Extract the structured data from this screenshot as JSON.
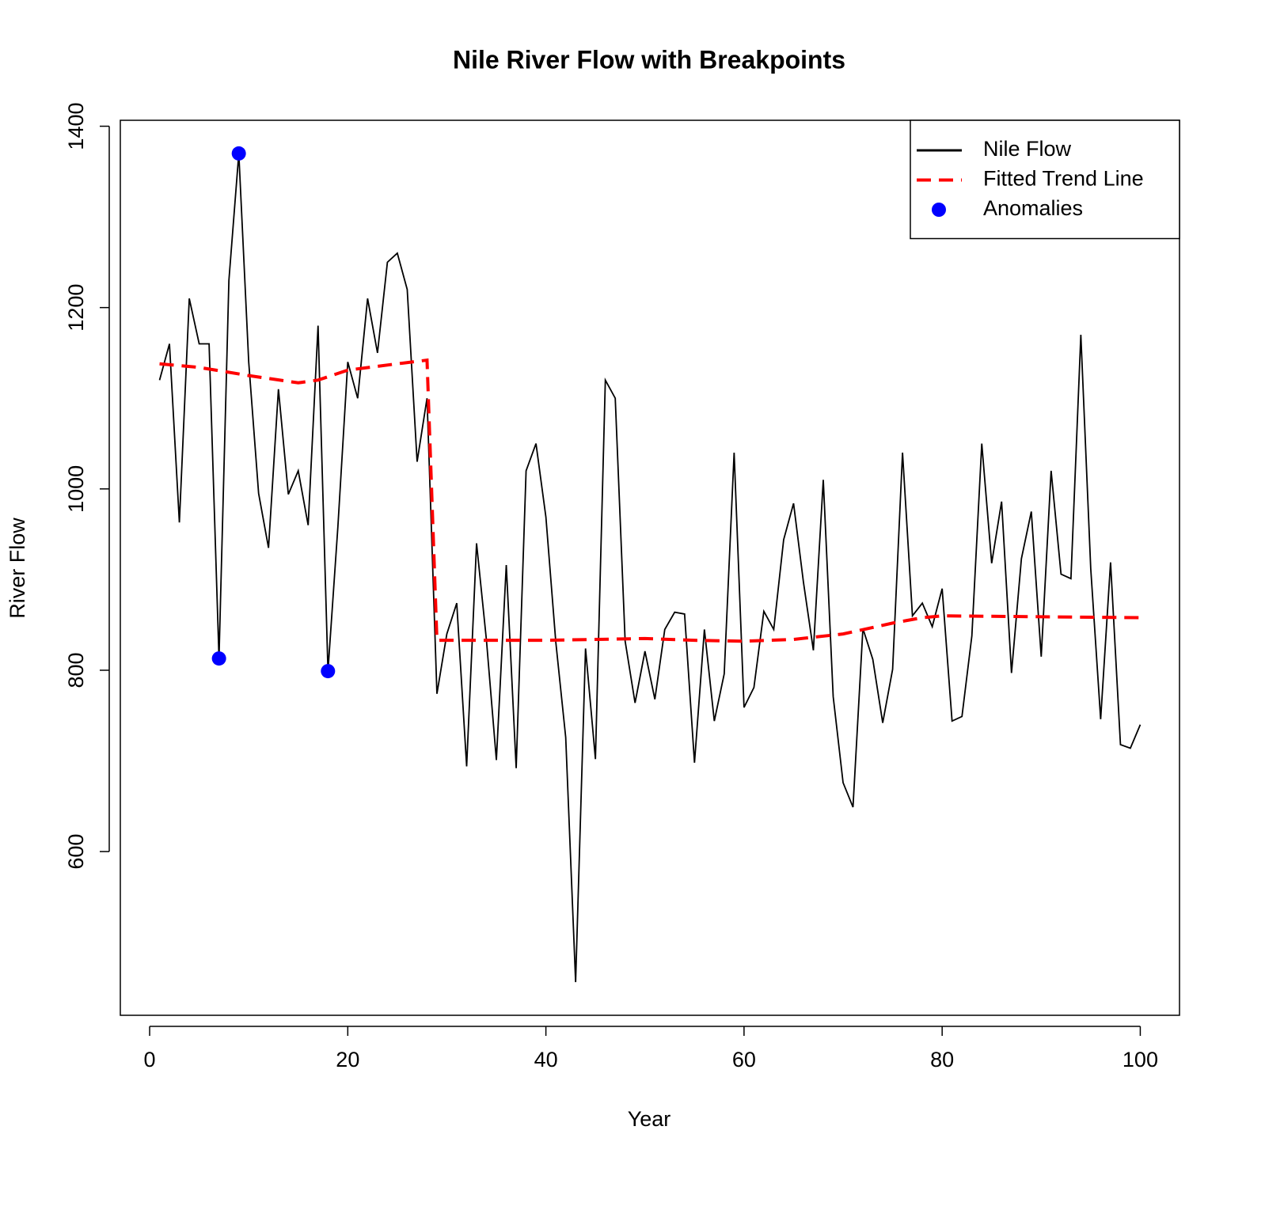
{
  "chart_data": {
    "type": "line",
    "title": "Nile River Flow with Breakpoints",
    "xlabel": "Year",
    "ylabel": "River Flow",
    "xlim": [
      -2.96,
      103.96
    ],
    "ylim": [
      419.44,
      1406.56
    ],
    "xticks": [
      0,
      20,
      40,
      60,
      80,
      100
    ],
    "yticks": [
      600,
      800,
      1000,
      1200,
      1400
    ],
    "legend": "top-right",
    "series": [
      {
        "name": "Nile Flow",
        "color": "#000000",
        "kind": "line",
        "line_style": "solid",
        "x": [
          1,
          2,
          3,
          4,
          5,
          6,
          7,
          8,
          9,
          10,
          11,
          12,
          13,
          14,
          15,
          16,
          17,
          18,
          19,
          20,
          21,
          22,
          23,
          24,
          25,
          26,
          27,
          28,
          29,
          30,
          31,
          32,
          33,
          34,
          35,
          36,
          37,
          38,
          39,
          40,
          41,
          42,
          43,
          44,
          45,
          46,
          47,
          48,
          49,
          50,
          51,
          52,
          53,
          54,
          55,
          56,
          57,
          58,
          59,
          60,
          61,
          62,
          63,
          64,
          65,
          66,
          67,
          68,
          69,
          70,
          71,
          72,
          73,
          74,
          75,
          76,
          77,
          78,
          79,
          80,
          81,
          82,
          83,
          84,
          85,
          86,
          87,
          88,
          89,
          90,
          91,
          92,
          93,
          94,
          95,
          96,
          97,
          98,
          99,
          100
        ],
        "values": [
          1120,
          1160,
          963,
          1210,
          1160,
          1160,
          813,
          1230,
          1370,
          1140,
          995,
          935,
          1110,
          994,
          1020,
          960,
          1180,
          799,
          958,
          1140,
          1100,
          1210,
          1150,
          1250,
          1260,
          1220,
          1030,
          1100,
          774,
          840,
          874,
          694,
          940,
          833,
          701,
          916,
          692,
          1020,
          1050,
          969,
          831,
          726,
          456,
          824,
          702,
          1120,
          1100,
          832,
          764,
          821,
          768,
          845,
          864,
          862,
          698,
          845,
          744,
          796,
          1040,
          759,
          781,
          865,
          845,
          944,
          984,
          897,
          822,
          1010,
          771,
          676,
          649,
          846,
          812,
          742,
          801,
          1040,
          860,
          874,
          848,
          890,
          744,
          749,
          838,
          1050,
          918,
          986,
          797,
          923,
          975,
          815,
          1020,
          906,
          901,
          1170,
          912,
          746,
          919,
          718,
          714,
          740
        ]
      },
      {
        "name": "Fitted Trend Line",
        "color": "#ff0000",
        "kind": "line",
        "line_style": "dashed",
        "x": [
          1,
          5,
          10,
          15,
          17,
          20,
          25,
          28,
          29,
          40,
          50,
          55,
          60,
          65,
          70,
          75,
          78,
          80,
          90,
          100
        ],
        "values": [
          1138,
          1134,
          1125,
          1117,
          1120,
          1131,
          1138,
          1142,
          833,
          833,
          835,
          833,
          832,
          834,
          840,
          852,
          858,
          860,
          859,
          858
        ]
      },
      {
        "name": "Anomalies",
        "color": "#0000ff",
        "kind": "points",
        "x": [
          7,
          9,
          18
        ],
        "values": [
          813,
          1370,
          799
        ]
      }
    ]
  }
}
